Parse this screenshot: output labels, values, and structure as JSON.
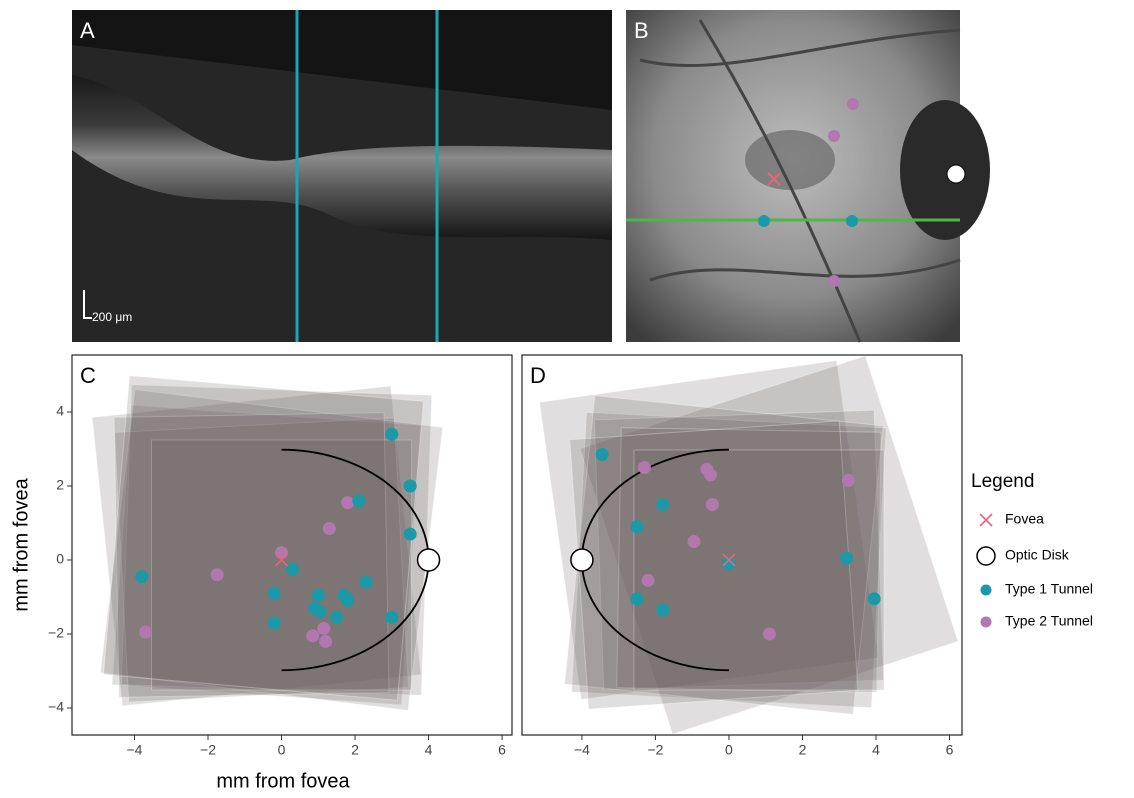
{
  "panels": {
    "A": {
      "label": "A",
      "scale_bar": "200 μm"
    },
    "B": {
      "label": "B"
    }
  },
  "axis_labels": {
    "x": "mm from fovea",
    "y": "mm from fovea"
  },
  "legend": {
    "title": "Legend",
    "entries": [
      {
        "name": "Fovea",
        "color": "#e8647a",
        "marker": "x"
      },
      {
        "name": "Optic Disk",
        "color": "#ffffff",
        "marker": "open-circle"
      },
      {
        "name": "Type 1 Tunnel",
        "color": "#1a9aa8",
        "marker": "dot"
      },
      {
        "name": "Type 2 Tunnel",
        "color": "#b377b0",
        "marker": "dot"
      }
    ]
  },
  "chart_data": [
    {
      "type": "scatter",
      "panel_label": "C",
      "xlim": [
        -5.7,
        6.27
      ],
      "ylim": [
        -4.73,
        5.54
      ],
      "xticks": [
        {
          "value": -4,
          "label": "−4"
        },
        {
          "value": -2,
          "label": "−2"
        },
        0,
        2,
        4,
        6
      ],
      "yticks": [
        {
          "value": -4,
          "label": "−4"
        },
        {
          "value": -2,
          "label": "−2"
        },
        0,
        2,
        4
      ],
      "series": [
        {
          "x": [
            0
          ],
          "values": [
            0
          ]
        },
        {
          "x": [
            4
          ],
          "values": [
            0
          ]
        },
        {
          "x": [
            3,
            3.5,
            2.1,
            3.5,
            0.3,
            2.3,
            -3.8,
            -0.2,
            1,
            1.7,
            1.8,
            0.9,
            1.05,
            1.5,
            3,
            -0.2
          ],
          "values": [
            3.4,
            2,
            1.6,
            0.7,
            -0.25,
            -0.6,
            -0.45,
            -0.9,
            -0.95,
            -0.95,
            -1.1,
            -1.3,
            -1.4,
            -1.55,
            -1.55,
            -1.7
          ]
        },
        {
          "x": [
            1.8,
            1.3,
            0,
            -1.75,
            -3.7,
            0.85,
            1.15,
            1.2
          ],
          "values": [
            1.55,
            0.85,
            0.2,
            -0.4,
            -1.95,
            -2.05,
            -1.85,
            -2.2
          ]
        }
      ]
    },
    {
      "type": "scatter",
      "panel_label": "D",
      "xlim": [
        -5.63,
        6.34
      ],
      "ylim": [
        -4.73,
        5.54
      ],
      "xticks": [
        {
          "value": -4,
          "label": "−4"
        },
        {
          "value": -2,
          "label": "−2"
        },
        0,
        2,
        4,
        6
      ],
      "series": [
        {
          "x": [
            0
          ],
          "values": [
            0
          ]
        },
        {
          "x": [
            -4
          ],
          "values": [
            0
          ]
        },
        {
          "x": [
            -3.45,
            -1.8,
            -2.5,
            0,
            3.2,
            -2.5,
            -1.8,
            3.95
          ],
          "values": [
            2.85,
            1.5,
            0.9,
            -0.1,
            0.05,
            -1.05,
            -1.35,
            -1.05
          ]
        },
        {
          "x": [
            -2.3,
            -0.6,
            -0.5,
            -0.45,
            -0.95,
            3.25,
            -2.2,
            1.1
          ],
          "values": [
            2.5,
            2.45,
            2.3,
            1.5,
            0.5,
            2.15,
            -0.55,
            -2
          ]
        }
      ]
    }
  ]
}
